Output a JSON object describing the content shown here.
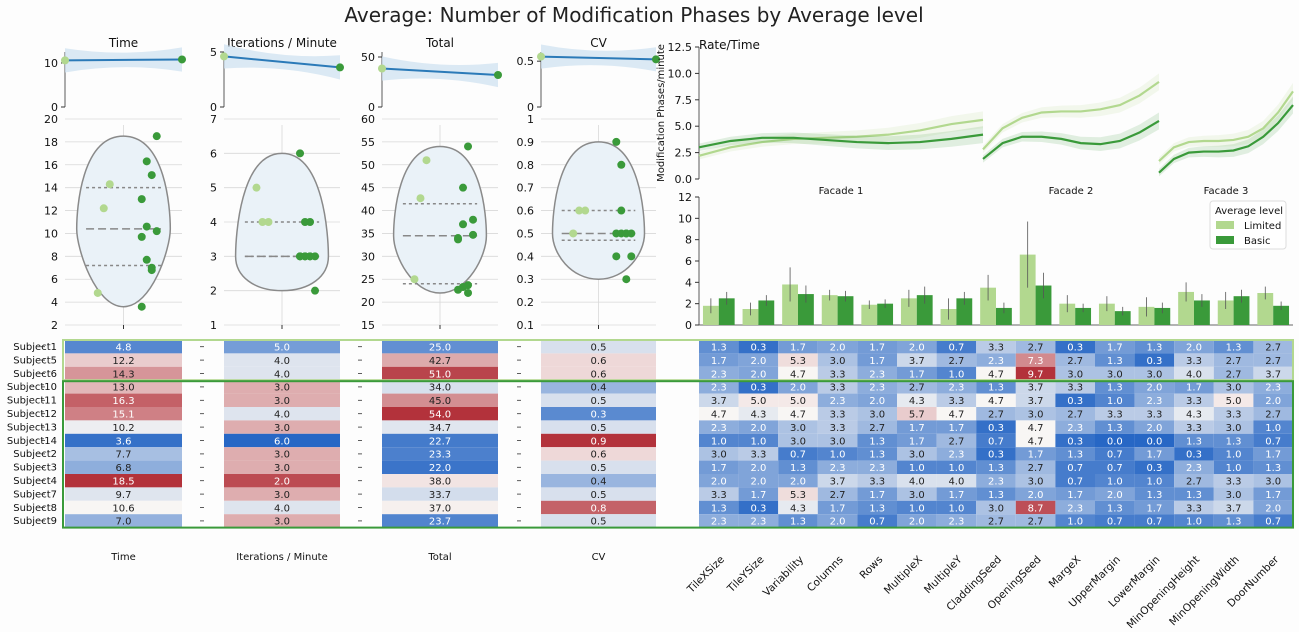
{
  "title": "Average: Number of Modification Phases by Average level",
  "colors": {
    "limited": "#b2d88f",
    "basic": "#3a9a3a",
    "reg_line": "#2b7ab8",
    "reg_band": "#cfe1f0",
    "violin_fill": "#eaf2f8",
    "violin_edge": "#8a8a8a",
    "group_limited_border": "#b2d88f",
    "group_basic_border": "#3a9a3a"
  },
  "legend": {
    "title": "Average level",
    "items": [
      "Limited",
      "Basic"
    ]
  },
  "groups": {
    "limited_rows": 3,
    "basic_rows": 11
  },
  "subjects": [
    "Subject1",
    "Subject5",
    "Subject6",
    "Subject10",
    "Subject11",
    "Subject12",
    "Subject13",
    "Subject14",
    "Subject2",
    "Subject3",
    "Subject4",
    "Subject7",
    "Subject8",
    "Subject9"
  ],
  "chart_data": [
    {
      "type": "scatter",
      "id": "time",
      "title": "Time",
      "xlabel": "Time",
      "reg_ylim": [
        0,
        12.5
      ],
      "reg_ticks": [
        0,
        10
      ],
      "reg_points": [
        [
          0,
          10.6
        ],
        [
          1,
          10.8
        ]
      ],
      "ylim": [
        2,
        20
      ],
      "ticks": [
        2,
        4,
        6,
        8,
        10,
        12,
        14,
        16,
        18,
        20
      ],
      "quartiles": [
        7.2,
        10.4,
        14.0
      ],
      "points_limited": [
        4.8,
        12.2,
        14.3
      ],
      "points_basic": [
        13.0,
        16.3,
        15.1,
        10.2,
        3.6,
        7.7,
        6.8,
        18.5,
        9.7,
        10.6,
        7.0
      ],
      "heatmap": {
        "values": [
          4.8,
          12.2,
          14.3,
          13.0,
          16.3,
          15.1,
          10.2,
          3.6,
          7.7,
          6.8,
          18.5,
          9.7,
          10.6,
          7.0
        ],
        "labels": [
          "4.8",
          "12.2",
          "14.3",
          "13.0",
          "16.3",
          "15.1",
          "10.2",
          "3.6",
          "7.7",
          "6.8",
          "18.5",
          "9.7",
          "10.6",
          "7.0"
        ],
        "center": 10.6,
        "range": 7.5,
        "reverse": false
      }
    },
    {
      "type": "scatter",
      "id": "ipm",
      "title": "Iterations / Minute",
      "xlabel": "Iterations / Minute",
      "reg_ylim": [
        0,
        5
      ],
      "reg_ticks": [
        0,
        5
      ],
      "reg_points": [
        [
          0,
          4.6
        ],
        [
          1,
          3.6
        ]
      ],
      "ylim": [
        1,
        7
      ],
      "ticks": [
        1,
        2,
        3,
        4,
        5,
        6,
        7
      ],
      "quartiles": [
        3.0,
        3.0,
        4.0
      ],
      "points_limited": [
        5.0,
        4.0,
        4.0
      ],
      "points_basic": [
        3.0,
        3.0,
        4.0,
        3.0,
        6.0,
        3.0,
        3.0,
        2.0,
        3.0,
        4.0,
        3.0
      ],
      "heatmap": {
        "values": [
          5.0,
          4.0,
          4.0,
          3.0,
          3.0,
          4.0,
          3.0,
          6.0,
          3.0,
          3.0,
          2.0,
          3.0,
          4.0,
          3.0
        ],
        "labels": [
          "5.0",
          "4.0",
          "4.0",
          "3.0",
          "3.0",
          "4.0",
          "3.0",
          "6.0",
          "3.0",
          "3.0",
          "2.0",
          "3.0",
          "4.0",
          "3.0"
        ],
        "center": 3.75,
        "range": 2.0,
        "reverse": true
      }
    },
    {
      "type": "scatter",
      "id": "total",
      "title": "Total",
      "xlabel": "Total",
      "reg_ylim": [
        0,
        55
      ],
      "reg_ticks": [
        0,
        50
      ],
      "reg_points": [
        [
          0,
          38.5
        ],
        [
          1,
          32.0
        ]
      ],
      "ylim": [
        15,
        60
      ],
      "ticks": [
        15,
        20,
        25,
        30,
        35,
        40,
        45,
        50,
        55,
        60
      ],
      "quartiles": [
        24.0,
        34.5,
        41.5
      ],
      "points_limited": [
        25.0,
        42.7,
        51.0
      ],
      "points_basic": [
        34.0,
        45.0,
        54.0,
        34.7,
        22.7,
        23.3,
        22.0,
        38.0,
        33.7,
        37.0,
        23.7
      ],
      "heatmap": {
        "values": [
          25.0,
          42.7,
          51.0,
          34.0,
          45.0,
          54.0,
          34.7,
          22.7,
          23.3,
          22.0,
          38.0,
          33.7,
          37.0,
          23.7
        ],
        "labels": [
          "25.0",
          "42.7",
          "51.0",
          "34.0",
          "45.0",
          "54.0",
          "34.7",
          "22.7",
          "23.3",
          "22.0",
          "38.0",
          "33.7",
          "37.0",
          "23.7"
        ],
        "center": 36.5,
        "range": 16.0,
        "reverse": false
      }
    },
    {
      "type": "scatter",
      "id": "cv",
      "title": "CV",
      "xlabel": "CV",
      "reg_ylim": [
        0,
        0.6
      ],
      "reg_ticks": [
        0,
        0.5
      ],
      "reg_points": [
        [
          0,
          0.55
        ],
        [
          1,
          0.52
        ]
      ],
      "ylim": [
        0.1,
        1.0
      ],
      "ticks": [
        0.1,
        0.2,
        0.3,
        0.4,
        0.5,
        0.6,
        0.7,
        0.8,
        0.9,
        1.0
      ],
      "quartiles": [
        0.47,
        0.5,
        0.6
      ],
      "points_limited": [
        0.5,
        0.6,
        0.6
      ],
      "points_basic": [
        0.4,
        0.5,
        0.3,
        0.5,
        0.9,
        0.6,
        0.5,
        0.4,
        0.5,
        0.8,
        0.5
      ],
      "heatmap": {
        "values": [
          0.5,
          0.6,
          0.6,
          0.4,
          0.5,
          0.3,
          0.5,
          0.9,
          0.6,
          0.5,
          0.4,
          0.5,
          0.8,
          0.5
        ],
        "labels": [
          "0.5",
          "0.6",
          "0.6",
          "0.4",
          "0.5",
          "0.3",
          "0.5",
          "0.9",
          "0.6",
          "0.5",
          "0.4",
          "0.5",
          "0.8",
          "0.5"
        ],
        "center": 0.55,
        "range": 0.33,
        "reverse": false
      }
    },
    {
      "type": "line",
      "id": "rate",
      "title": "Rate/Time",
      "ylabel": "Modification Phases/minute",
      "ylim": [
        0,
        12.5
      ],
      "ticks": [
        0.0,
        2.5,
        5.0,
        7.5,
        10.0,
        12.5
      ],
      "facets": [
        {
          "label": "Facade 1",
          "limited": [
            2.2,
            3.0,
            3.5,
            3.8,
            3.9,
            4.0,
            4.2,
            4.6,
            5.2,
            5.6
          ],
          "basic": [
            3.0,
            3.6,
            3.9,
            3.9,
            3.7,
            3.5,
            3.4,
            3.5,
            3.8,
            4.2
          ]
        },
        {
          "label": "Facade 2",
          "limited": [
            2.8,
            4.8,
            5.8,
            6.3,
            6.4,
            6.4,
            6.6,
            7.0,
            7.9,
            9.2
          ],
          "basic": [
            1.9,
            3.4,
            4.0,
            4.0,
            3.8,
            3.4,
            3.3,
            3.6,
            4.4,
            5.5
          ]
        },
        {
          "label": "Facade 3",
          "limited": [
            1.7,
            3.0,
            3.5,
            3.6,
            3.6,
            3.7,
            4.0,
            4.8,
            6.3,
            8.3
          ],
          "basic": [
            0.6,
            1.9,
            2.5,
            2.6,
            2.6,
            2.7,
            3.1,
            4.0,
            5.3,
            7.0
          ]
        }
      ]
    },
    {
      "type": "bar",
      "id": "params",
      "ylim": [
        0,
        12
      ],
      "ticks": [
        0,
        2,
        4,
        6,
        8,
        10,
        12
      ],
      "categories": [
        "TileXSize",
        "TileYSize",
        "Variability",
        "Columns",
        "Rows",
        "MultipleX",
        "MultipleY",
        "CladdingSeed",
        "OpeningSeed",
        "MargeX",
        "UpperMargin",
        "LowerMargin",
        "MinOpeningHeight",
        "MinOpeningWidth",
        "DoorNumber"
      ],
      "series": [
        {
          "name": "Limited",
          "values": [
            1.8,
            1.5,
            3.8,
            2.8,
            1.9,
            2.5,
            1.5,
            3.5,
            6.6,
            2.0,
            2.0,
            1.7,
            3.1,
            2.3,
            3.0
          ]
        },
        {
          "name": "Basic",
          "values": [
            2.5,
            2.3,
            2.9,
            2.7,
            2.0,
            2.8,
            2.5,
            1.6,
            3.7,
            1.6,
            1.3,
            1.6,
            2.3,
            2.7,
            1.8
          ]
        }
      ],
      "errors_limited": [
        0.7,
        0.6,
        1.6,
        0.5,
        0.4,
        0.8,
        1.0,
        1.2,
        3.1,
        0.8,
        0.7,
        0.9,
        0.9,
        0.8,
        0.6
      ],
      "errors_basic": [
        0.6,
        0.5,
        0.8,
        0.5,
        0.4,
        0.8,
        0.6,
        0.5,
        1.2,
        0.4,
        0.4,
        0.5,
        0.6,
        0.6,
        0.4
      ],
      "heatmap": {
        "rows": [
          [
            "1.3",
            "0.3",
            "1.7",
            "2.0",
            "1.7",
            "2.0",
            "0.7",
            "3.3",
            "2.7",
            "0.3",
            "1.7",
            "1.3",
            "2.0",
            "1.3",
            "2.7"
          ],
          [
            "1.7",
            "2.0",
            "5.3",
            "3.0",
            "1.7",
            "3.7",
            "2.7",
            "2.3",
            "7.3",
            "2.7",
            "1.3",
            "0.3",
            "3.3",
            "2.7",
            "2.7"
          ],
          [
            "2.3",
            "2.0",
            "4.7",
            "3.3",
            "2.3",
            "1.7",
            "1.0",
            "4.7",
            "9.7",
            "3.0",
            "3.0",
            "3.0",
            "4.0",
            "2.7",
            "3.7"
          ],
          [
            "2.3",
            "0.3",
            "2.0",
            "3.3",
            "2.3",
            "2.7",
            "2.3",
            "1.3",
            "3.7",
            "3.3",
            "1.3",
            "2.0",
            "1.7",
            "3.0",
            "2.3"
          ],
          [
            "3.7",
            "5.0",
            "5.0",
            "2.3",
            "2.0",
            "4.3",
            "3.3",
            "4.7",
            "3.7",
            "0.3",
            "1.0",
            "2.3",
            "3.3",
            "5.0",
            "2.0"
          ],
          [
            "4.7",
            "4.3",
            "4.7",
            "3.3",
            "3.0",
            "5.7",
            "4.7",
            "2.7",
            "3.0",
            "2.7",
            "3.3",
            "3.3",
            "4.3",
            "3.3",
            "2.7"
          ],
          [
            "2.3",
            "2.0",
            "3.0",
            "3.3",
            "2.7",
            "1.7",
            "1.7",
            "0.3",
            "4.7",
            "2.3",
            "1.3",
            "2.0",
            "3.3",
            "3.0",
            "1.0"
          ],
          [
            "1.0",
            "1.0",
            "3.0",
            "3.0",
            "1.3",
            "1.7",
            "2.7",
            "0.7",
            "4.7",
            "0.3",
            "0.0",
            "0.0",
            "1.3",
            "1.3",
            "0.7"
          ],
          [
            "3.0",
            "3.3",
            "0.7",
            "1.0",
            "1.3",
            "3.0",
            "2.3",
            "0.3",
            "1.7",
            "1.3",
            "0.7",
            "1.7",
            "0.3",
            "1.0",
            "1.7"
          ],
          [
            "1.7",
            "2.0",
            "1.3",
            "2.3",
            "2.3",
            "1.0",
            "1.0",
            "1.3",
            "2.7",
            "0.7",
            "0.7",
            "0.3",
            "2.3",
            "1.0",
            "1.3"
          ],
          [
            "2.0",
            "2.0",
            "2.0",
            "3.7",
            "3.3",
            "4.0",
            "4.0",
            "2.3",
            "3.0",
            "0.7",
            "1.0",
            "1.0",
            "2.7",
            "3.3",
            "3.0"
          ],
          [
            "3.3",
            "1.7",
            "5.3",
            "2.7",
            "1.7",
            "3.0",
            "1.7",
            "1.3",
            "2.0",
            "1.7",
            "2.0",
            "1.3",
            "1.3",
            "3.0",
            "1.7"
          ],
          [
            "1.3",
            "0.3",
            "4.3",
            "1.7",
            "1.3",
            "1.0",
            "1.0",
            "3.0",
            "8.7",
            "2.3",
            "1.3",
            "1.7",
            "3.3",
            "3.7",
            "2.0"
          ],
          [
            "2.3",
            "2.3",
            "1.3",
            "2.0",
            "0.7",
            "2.0",
            "2.3",
            "2.7",
            "2.7",
            "1.0",
            "0.7",
            "0.7",
            "1.0",
            "1.3",
            "0.7"
          ]
        ],
        "center": 4.7
      }
    }
  ]
}
